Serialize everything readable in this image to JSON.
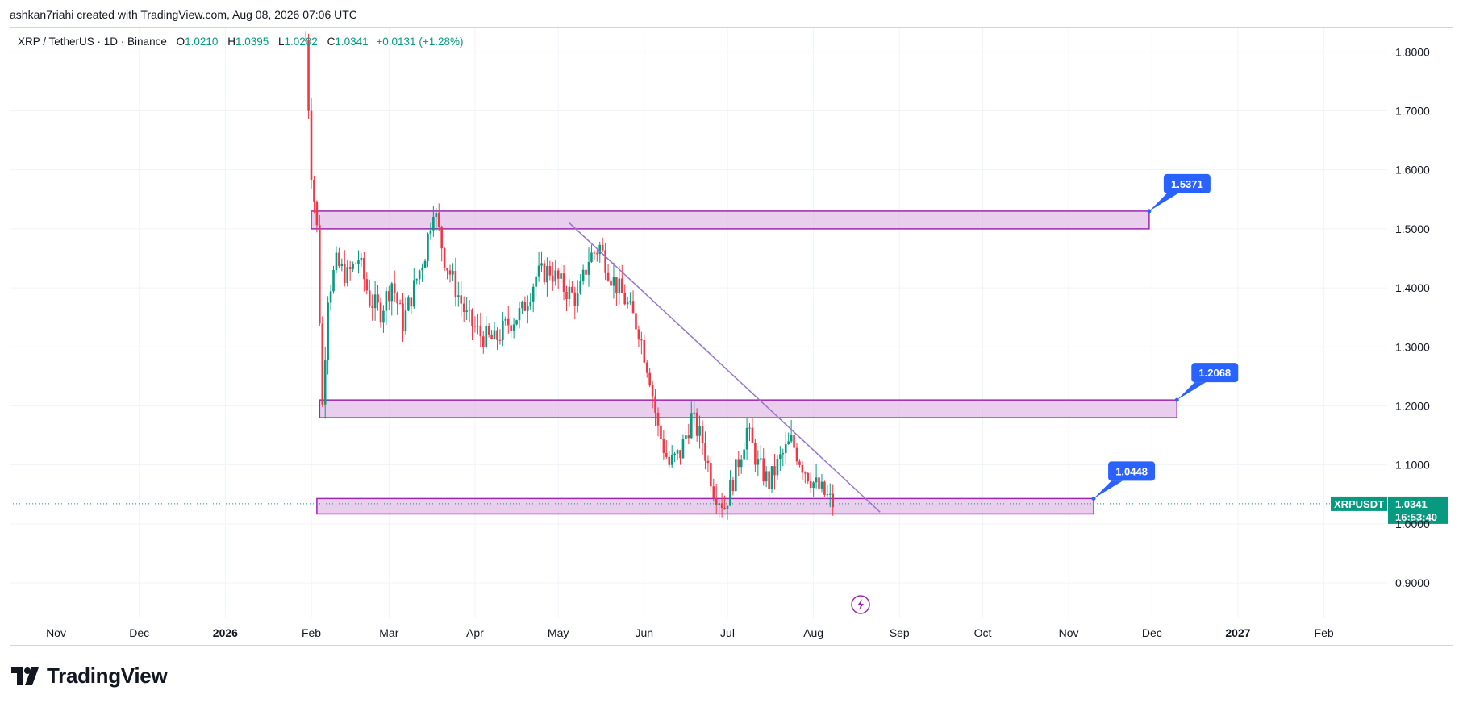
{
  "caption": "ashkan7riahi created with TradingView.com, Aug 08, 2026 07:06 UTC",
  "legend": {
    "symbol": "XRP / TetherUS · 1D · Binance",
    "o_label": "O",
    "o_value": "1.0210",
    "h_label": "H",
    "h_value": "1.0395",
    "l_label": "L",
    "l_value": "1.0202",
    "c_label": "C",
    "c_value": "1.0341",
    "change": "+0.0131 (+1.28%)"
  },
  "brand": {
    "name": "TradingView",
    "logo_icon": "tradingview-logo-icon"
  },
  "colors": {
    "up": "#089981",
    "down": "#f23645",
    "zone_fill": "#e1bee7",
    "zone_stroke": "#9c27b0",
    "trendline": "#9575cd",
    "callout": "#2962ff",
    "price_tag": "#089981",
    "grid": "#f0f3fa"
  },
  "chart_data": {
    "type": "candlestick",
    "symbol_tag": "XRPUSDT",
    "last_price": "1.0341",
    "countdown": "16:53:40",
    "ylim": [
      0.84,
      1.84
    ],
    "y_ticks": [
      "0.9000",
      "1.0000",
      "1.1000",
      "1.2000",
      "1.3000",
      "1.4000",
      "1.5000",
      "1.6000",
      "1.7000",
      "1.8000"
    ],
    "x_ticks": [
      "Nov",
      "Dec",
      "2026",
      "Feb",
      "Mar",
      "Apr",
      "May",
      "Jun",
      "Jul",
      "Aug",
      "Sep",
      "Oct",
      "Nov",
      "Dec",
      "2027",
      "Feb"
    ],
    "zones": [
      {
        "from": "2026-02-01",
        "to": "2026-11-30",
        "low": 1.5,
        "high": 1.53,
        "label": "1.5371"
      },
      {
        "from": "2026-02-04",
        "to": "2026-12-10",
        "low": 1.18,
        "high": 1.21,
        "label": "1.2068"
      },
      {
        "from": "2026-02-03",
        "to": "2026-11-10",
        "low": 1.017,
        "high": 1.043,
        "label": "1.0448"
      }
    ],
    "trendline": {
      "start": [
        "2026-05-05",
        1.51
      ],
      "end": [
        "2026-08-25",
        1.02
      ]
    },
    "events_icon": "flash-icon",
    "price_path": [
      [
        "2026-01-30",
        1.82
      ],
      [
        "2026-02-01",
        1.6
      ],
      [
        "2026-02-03",
        1.5
      ],
      [
        "2026-02-05",
        1.2
      ],
      [
        "2026-02-07",
        1.39
      ],
      [
        "2026-02-10",
        1.44
      ],
      [
        "2026-02-14",
        1.42
      ],
      [
        "2026-02-18",
        1.45
      ],
      [
        "2026-02-22",
        1.38
      ],
      [
        "2026-02-26",
        1.36
      ],
      [
        "2026-03-02",
        1.41
      ],
      [
        "2026-03-06",
        1.34
      ],
      [
        "2026-03-10",
        1.4
      ],
      [
        "2026-03-14",
        1.46
      ],
      [
        "2026-03-17",
        1.54
      ],
      [
        "2026-03-21",
        1.45
      ],
      [
        "2026-03-25",
        1.4
      ],
      [
        "2026-03-29",
        1.35
      ],
      [
        "2026-04-03",
        1.32
      ],
      [
        "2026-04-08",
        1.31
      ],
      [
        "2026-04-13",
        1.34
      ],
      [
        "2026-04-18",
        1.36
      ],
      [
        "2026-04-23",
        1.42
      ],
      [
        "2026-04-28",
        1.43
      ],
      [
        "2026-05-03",
        1.4
      ],
      [
        "2026-05-08",
        1.38
      ],
      [
        "2026-05-12",
        1.45
      ],
      [
        "2026-05-16",
        1.47
      ],
      [
        "2026-05-20",
        1.42
      ],
      [
        "2026-05-25",
        1.38
      ],
      [
        "2026-05-30",
        1.33
      ],
      [
        "2026-06-03",
        1.25
      ],
      [
        "2026-06-06",
        1.16
      ],
      [
        "2026-06-10",
        1.1
      ],
      [
        "2026-06-14",
        1.12
      ],
      [
        "2026-06-18",
        1.18
      ],
      [
        "2026-06-22",
        1.14
      ],
      [
        "2026-06-26",
        1.06
      ],
      [
        "2026-06-30",
        1.03
      ],
      [
        "2026-07-04",
        1.09
      ],
      [
        "2026-07-08",
        1.16
      ],
      [
        "2026-07-12",
        1.1
      ],
      [
        "2026-07-16",
        1.07
      ],
      [
        "2026-07-20",
        1.11
      ],
      [
        "2026-07-24",
        1.14
      ],
      [
        "2026-07-28",
        1.1
      ],
      [
        "2026-08-01",
        1.07
      ],
      [
        "2026-08-05",
        1.05
      ],
      [
        "2026-08-08",
        1.034
      ]
    ]
  }
}
